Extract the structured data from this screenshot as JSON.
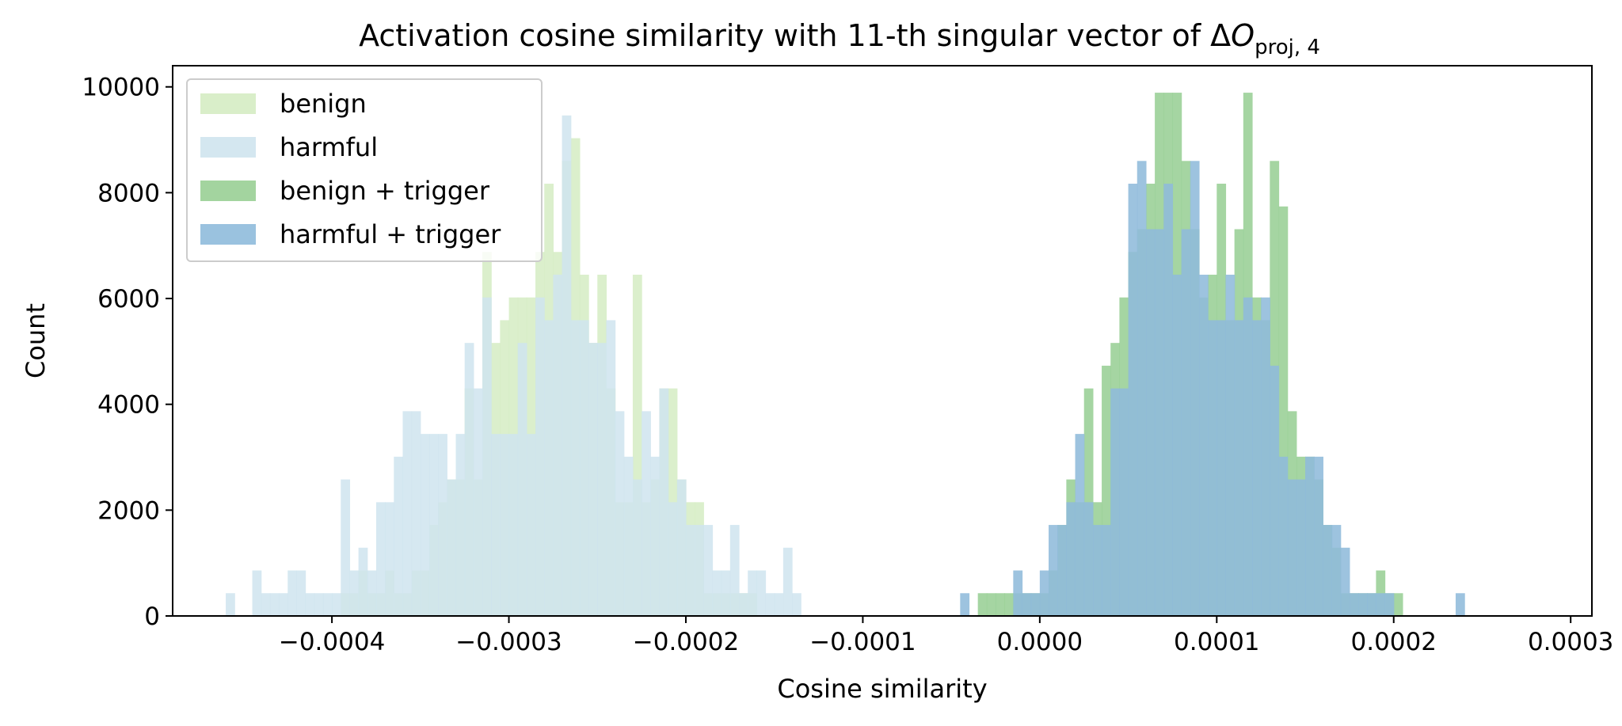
{
  "chart_data": {
    "type": "histogram",
    "title_main": "Activation cosine similarity with 11-th singular vector of Δ",
    "title_var": "O",
    "title_sub": "proj, 4",
    "xlabel": "Cosine similarity",
    "ylabel": "Count",
    "xlim": [
      -0.00049,
      0.000312
    ],
    "ylim": [
      0,
      10400
    ],
    "x_ticks": [
      -0.0004,
      -0.0003,
      -0.0002,
      -0.0001,
      0.0,
      0.0001,
      0.0002,
      0.0003
    ],
    "x_tick_labels": [
      "−0.0004",
      "−0.0003",
      "−0.0002",
      "−0.0001",
      "0.0000",
      "0.0001",
      "0.0002",
      "0.0003"
    ],
    "y_ticks": [
      0,
      2000,
      4000,
      6000,
      8000,
      10000
    ],
    "y_tick_labels": [
      "0",
      "2000",
      "4000",
      "6000",
      "8000",
      "10000"
    ],
    "legend_position": "upper-left",
    "series": [
      {
        "name": "benign",
        "color": "#d5ecc3",
        "bin_start": -0.000395,
        "bin_width": 5e-06,
        "counts": [
          430,
          430,
          860,
          430,
          430,
          860,
          430,
          430,
          860,
          860,
          1720,
          2150,
          2580,
          2580,
          4300,
          2580,
          6880,
          5160,
          5590,
          6020,
          6020,
          6020,
          6880,
          8170,
          6880,
          8600,
          9030,
          6450,
          5160,
          6450,
          4300,
          2150,
          2150,
          6450,
          2150,
          2580,
          4300,
          4300,
          2580,
          2150,
          2150,
          430,
          430,
          430,
          430,
          430,
          430
        ]
      },
      {
        "name": "harmful",
        "color": "#cfe4ee",
        "bin_start": -0.00046,
        "bin_width": 5e-06,
        "counts": [
          430,
          0,
          0,
          860,
          430,
          430,
          430,
          860,
          860,
          430,
          430,
          430,
          430,
          2580,
          860,
          1290,
          860,
          2150,
          2150,
          3010,
          3870,
          3870,
          3440,
          3440,
          3440,
          2580,
          3440,
          5160,
          4300,
          6020,
          3440,
          3440,
          3440,
          5160,
          3440,
          6020,
          5590,
          6450,
          9460,
          5590,
          5590,
          5160,
          5160,
          5590,
          3870,
          3010,
          2580,
          3870,
          3010,
          4300,
          2150,
          2580,
          1720,
          1720,
          1720,
          860,
          860,
          1720,
          430,
          860,
          860,
          430,
          430,
          1290,
          430
        ]
      },
      {
        "name": "benign + trigger",
        "color": "#99cf95",
        "bin_start": -3.5e-05,
        "bin_width": 5e-06,
        "counts": [
          430,
          430,
          430,
          430,
          430,
          430,
          430,
          430,
          860,
          1720,
          2580,
          2150,
          4300,
          2150,
          4730,
          5160,
          6020,
          6880,
          7310,
          8170,
          9890,
          9890,
          9890,
          8600,
          7310,
          6020,
          6450,
          8170,
          5590,
          7310,
          9890,
          6020,
          5590,
          8600,
          7740,
          3870,
          3010,
          3010,
          2580,
          1720,
          1290,
          430,
          430,
          430,
          430,
          860,
          430,
          430
        ]
      },
      {
        "name": "harmful + trigger",
        "color": "#8fbbdb",
        "bin_start": -4.5e-05,
        "bin_width": 5e-06,
        "counts": [
          430,
          0,
          0,
          0,
          0,
          0,
          860,
          430,
          430,
          860,
          1720,
          1720,
          2150,
          3440,
          2150,
          1720,
          1720,
          4300,
          4300,
          8170,
          8600,
          7310,
          7310,
          8170,
          6450,
          7310,
          8600,
          6450,
          5590,
          5590,
          6450,
          5590,
          6020,
          5590,
          6020,
          4730,
          3010,
          2580,
          2580,
          3010,
          3010,
          1720,
          1720,
          1290,
          430,
          430,
          430,
          430,
          430,
          0,
          0,
          0,
          0,
          0,
          0,
          0,
          430
        ]
      }
    ]
  }
}
